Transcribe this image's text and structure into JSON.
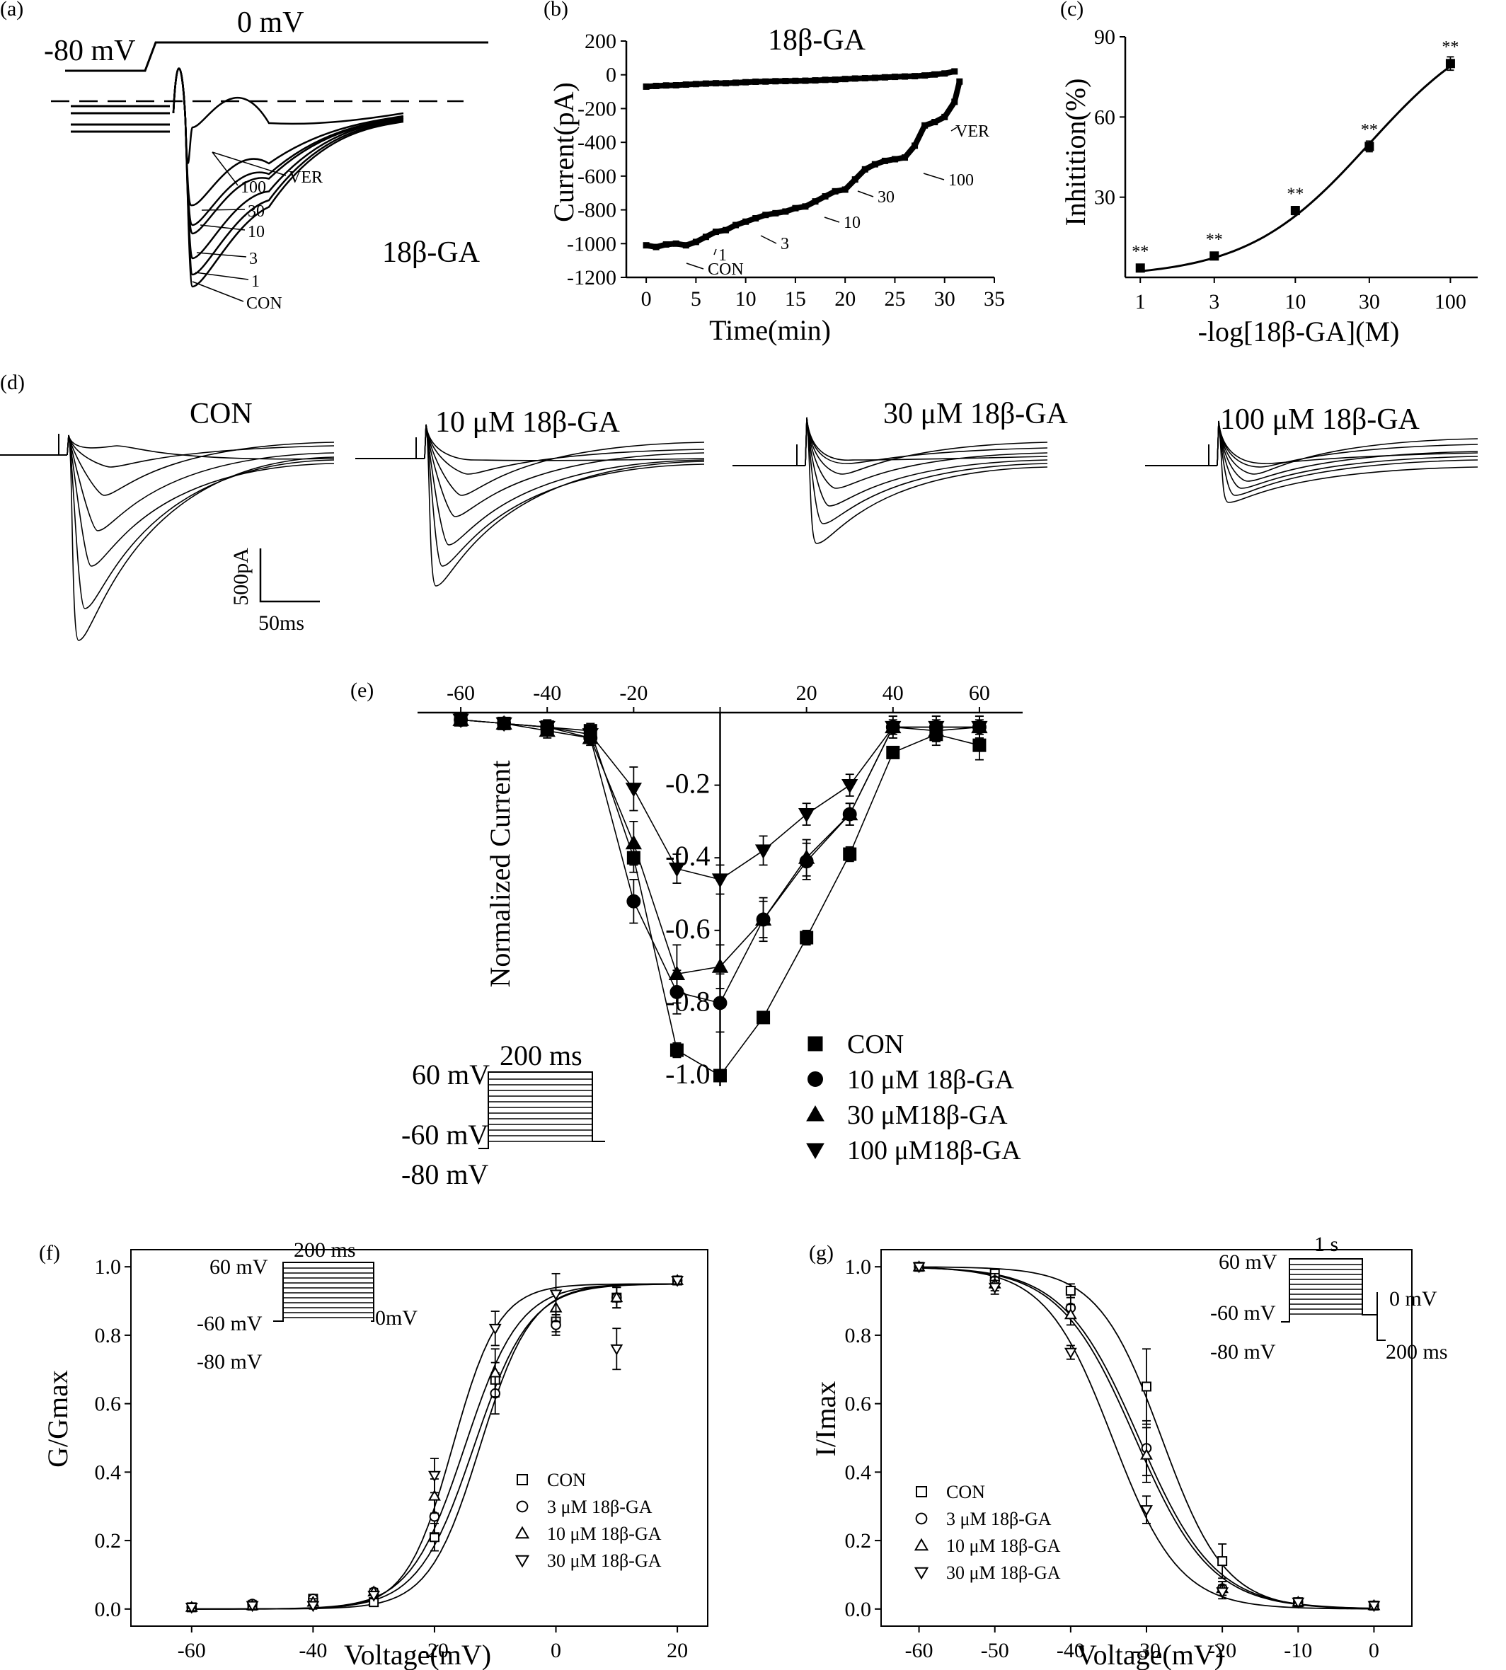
{
  "panel_labels": {
    "a": "(a)",
    "b": "(b)",
    "c": "(c)",
    "d": "(d)",
    "e": "(e)",
    "f": "(f)",
    "g": "(g)"
  },
  "panel_a": {
    "hold_label": "-80 mV",
    "step_label": "0 mV",
    "compound": "18β-GA",
    "trace_labels": [
      "VER",
      "100",
      "30",
      "10",
      "3",
      "1",
      "CON"
    ]
  },
  "panel_d": {
    "titles": [
      "CON",
      "10 μM 18β-GA",
      "30 μM 18β-GA",
      "100 μM 18β-GA"
    ],
    "scale_current": "500pA",
    "scale_time": "50ms"
  },
  "protocol_e": {
    "v_high": "60 mV",
    "v_mid": "-60 mV",
    "v_hold": "-80 mV",
    "duration": "200 ms"
  },
  "protocol_f": {
    "v_high": "60 mV",
    "v_mid": "-60 mV",
    "v_hold": "-80 mV",
    "duration": "200 ms",
    "v_post": "0mV"
  },
  "protocol_g": {
    "v_high": "60 mV",
    "v_mid": "-60 mV",
    "v_hold": "-80 mV",
    "duration": "1 s",
    "v_test": "0 mV",
    "test_duration": "200 ms"
  },
  "chart_data": [
    {
      "id": "b",
      "type": "line",
      "title": "18β-GA",
      "xlabel": "Time(min)",
      "ylabel": "Current(pA)",
      "xlim": [
        -2,
        35
      ],
      "ylim": [
        -1200,
        200
      ],
      "xticks": [
        0,
        5,
        10,
        15,
        20,
        25,
        30,
        35
      ],
      "xtick_labels": [
        "0",
        "5",
        "10",
        "15",
        "20",
        "25",
        "30",
        "35"
      ],
      "yticks": [
        200,
        0,
        -200,
        -400,
        -600,
        -800,
        -1000,
        -1200
      ],
      "ytick_labels": [
        "200",
        "0",
        "-200",
        "-400",
        "-600",
        "-800",
        "-1000",
        "-1200"
      ],
      "series": [
        {
          "values_x": [
            0,
            1,
            2,
            3,
            4,
            5,
            6,
            7,
            8,
            9,
            10,
            11,
            12,
            13,
            14,
            15,
            16,
            17,
            18,
            19,
            20,
            21,
            22,
            23,
            24,
            25,
            26,
            27,
            28,
            29,
            30,
            31
          ],
          "values_y": [
            -70,
            -66,
            -63,
            -62,
            -58,
            -55,
            -52,
            -50,
            -50,
            -47,
            -44,
            -41,
            -40,
            -38,
            -37,
            -36,
            -35,
            -33,
            -30,
            -29,
            -25,
            -22,
            -20,
            -18,
            -15,
            -12,
            -10,
            -8,
            -4,
            2,
            8,
            20
          ]
        },
        {
          "values_x": [
            0,
            1,
            2,
            3,
            4,
            5,
            6,
            7,
            8,
            9,
            10,
            11,
            12,
            13,
            14,
            15,
            16,
            17,
            18,
            19,
            20,
            21,
            22,
            23,
            24,
            25,
            26,
            27,
            28,
            29,
            30,
            31,
            31.5
          ],
          "values_y": [
            -1010,
            -1020,
            -1005,
            -1000,
            -1010,
            -990,
            -960,
            -930,
            -920,
            -890,
            -870,
            -850,
            -830,
            -820,
            -810,
            -790,
            -780,
            -750,
            -720,
            -690,
            -680,
            -620,
            -560,
            -530,
            -510,
            -500,
            -490,
            -420,
            -300,
            -280,
            -250,
            -160,
            -40
          ]
        }
      ],
      "annotations": [
        "CON",
        "1",
        "3",
        "10",
        "30",
        "100",
        "VER"
      ]
    },
    {
      "id": "c",
      "type": "line",
      "xlabel": "-log[18β-GA](M)",
      "ylabel": "Inhitition(%)",
      "xscale": "log",
      "xlim": [
        0.8,
        150
      ],
      "ylim": [
        0,
        90
      ],
      "xticks": [
        1,
        3,
        10,
        30,
        100
      ],
      "xtick_labels": [
        "1",
        "3",
        "10",
        "30",
        "100"
      ],
      "yticks": [
        30,
        60,
        90
      ],
      "ytick_labels": [
        "30",
        "60",
        "90"
      ],
      "categories": [
        1,
        3,
        10,
        30,
        100
      ],
      "values": [
        3.5,
        8.0,
        25.0,
        49.0,
        80.0
      ],
      "errors": [
        1.0,
        1.2,
        1.5,
        2.0,
        2.5
      ],
      "significance": [
        "**",
        "**",
        "**",
        "**",
        "**"
      ],
      "fit": "Hill curve"
    },
    {
      "id": "e",
      "type": "line",
      "ylabel": "Normalized Current",
      "xlim": [
        -70,
        70
      ],
      "ylim": [
        -1.05,
        0.05
      ],
      "xticks": [
        -60,
        -40,
        -20,
        0,
        20,
        40,
        60
      ],
      "xtick_labels": [
        "-60",
        "-40",
        "-20",
        "",
        "20",
        "40",
        "60"
      ],
      "yticks": [
        -0.2,
        -0.4,
        -0.6,
        -0.8,
        -1.0
      ],
      "ytick_labels": [
        "-0.2",
        "-0.4",
        "-0.6",
        "-0.8",
        "-1.0"
      ],
      "x": [
        -60,
        -50,
        -40,
        -30,
        -20,
        -10,
        0,
        10,
        20,
        30,
        40,
        50,
        60
      ],
      "series": [
        {
          "name": "CON",
          "marker": "square",
          "values": [
            -0.02,
            -0.03,
            -0.04,
            -0.05,
            -0.4,
            -0.93,
            -1.0,
            -0.84,
            -0.62,
            -0.39,
            -0.11,
            -0.06,
            -0.09
          ],
          "errors": [
            0.01,
            0.01,
            0.01,
            0.02,
            0.04,
            0.02,
            0.0,
            0.01,
            0.02,
            0.02,
            0.01,
            0.03,
            0.04
          ]
        },
        {
          "name": "10 μM 18β-GA",
          "marker": "circle",
          "values": [
            -0.02,
            -0.03,
            -0.04,
            -0.07,
            -0.52,
            -0.77,
            -0.8,
            -0.57,
            -0.41,
            -0.28,
            -0.04,
            -0.04,
            -0.04
          ],
          "errors": [
            0.01,
            0.01,
            0.02,
            0.02,
            0.06,
            0.06,
            0.08,
            0.06,
            0.05,
            0.03,
            0.03,
            0.03,
            0.03
          ]
        },
        {
          "name": "30 μM18β-GA",
          "marker": "triangle-up",
          "values": [
            -0.02,
            -0.03,
            -0.05,
            -0.07,
            -0.36,
            -0.72,
            -0.7,
            -0.57,
            -0.4,
            -0.28,
            -0.04,
            -0.05,
            -0.04
          ],
          "errors": [
            0.01,
            0.01,
            0.02,
            0.02,
            0.06,
            0.08,
            0.06,
            0.05,
            0.05,
            0.03,
            0.03,
            0.03,
            0.03
          ]
        },
        {
          "name": "100 μM18β-GA",
          "marker": "triangle-down",
          "values": [
            -0.02,
            -0.03,
            -0.04,
            -0.06,
            -0.21,
            -0.43,
            -0.46,
            -0.38,
            -0.28,
            -0.2,
            -0.04,
            -0.04,
            -0.04
          ],
          "errors": [
            0.01,
            0.01,
            0.01,
            0.02,
            0.06,
            0.04,
            0.04,
            0.04,
            0.03,
            0.03,
            0.02,
            0.03,
            0.02
          ]
        }
      ]
    },
    {
      "id": "f",
      "type": "scatter",
      "xlabel": "Voltage(mV)",
      "ylabel": "G/Gmax",
      "xlim": [
        -70,
        25
      ],
      "ylim": [
        -0.05,
        1.05
      ],
      "xticks": [
        -60,
        -40,
        -20,
        0,
        20
      ],
      "xtick_labels": [
        "-60",
        "-40",
        "-20",
        "0",
        "20"
      ],
      "yticks": [
        0.0,
        0.2,
        0.4,
        0.6,
        0.8,
        1.0
      ],
      "ytick_labels": [
        "0.0",
        "0.2",
        "0.4",
        "0.6",
        "0.8",
        "1.0"
      ],
      "x": [
        -60,
        -50,
        -40,
        -30,
        -20,
        -10,
        0,
        10,
        20
      ],
      "series": [
        {
          "name": "CON",
          "marker": "open-square",
          "values": [
            0.005,
            0.01,
            0.03,
            0.02,
            0.21,
            0.67,
            0.84,
            0.91,
            0.96
          ],
          "errors": [
            0.01,
            0.01,
            0.01,
            0.01,
            0.04,
            0.05,
            0.03,
            0.03,
            0.01
          ]
        },
        {
          "name": "3 μM 18β-GA",
          "marker": "open-circle",
          "values": [
            0.005,
            0.015,
            0.03,
            0.05,
            0.27,
            0.63,
            0.83,
            0.91,
            0.96
          ],
          "errors": [
            0.01,
            0.01,
            0.01,
            0.01,
            0.05,
            0.06,
            0.03,
            0.03,
            0.01
          ]
        },
        {
          "name": "10 μM 18β-GA",
          "marker": "open-triangle-up",
          "values": [
            0.005,
            0.01,
            0.02,
            0.05,
            0.33,
            0.69,
            0.88,
            0.91,
            0.96
          ],
          "errors": [
            0.01,
            0.01,
            0.01,
            0.01,
            0.05,
            0.07,
            0.04,
            0.03,
            0.01
          ]
        },
        {
          "name": "30 μM 18β-GA",
          "marker": "open-triangle-down",
          "values": [
            0.005,
            0.01,
            0.01,
            0.04,
            0.39,
            0.82,
            0.92,
            0.76,
            0.96
          ],
          "errors": [
            0.01,
            0.01,
            0.01,
            0.01,
            0.05,
            0.05,
            0.06,
            0.06,
            0.01
          ]
        }
      ]
    },
    {
      "id": "g",
      "type": "scatter",
      "xlabel": "Voltage(mV)",
      "ylabel": "I/Imax",
      "xlim": [
        -65,
        5
      ],
      "ylim": [
        -0.05,
        1.05
      ],
      "xticks": [
        -60,
        -50,
        -40,
        -30,
        -20,
        -10,
        0
      ],
      "xtick_labels": [
        "-60",
        "-50",
        "-40",
        "-30",
        "-20",
        "-10",
        "0"
      ],
      "yticks": [
        0.0,
        0.2,
        0.4,
        0.6,
        0.8,
        1.0
      ],
      "ytick_labels": [
        "0.0",
        "0.2",
        "0.4",
        "0.6",
        "0.8",
        "1.0"
      ],
      "x": [
        -60,
        -50,
        -40,
        -30,
        -20,
        -10,
        0
      ],
      "series": [
        {
          "name": "CON",
          "marker": "open-square",
          "values": [
            1.0,
            0.98,
            0.93,
            0.65,
            0.14,
            0.02,
            0.01
          ],
          "errors": [
            0.01,
            0.01,
            0.02,
            0.11,
            0.05,
            0.01,
            0.01
          ]
        },
        {
          "name": "3 μM 18β-GA",
          "marker": "open-circle",
          "values": [
            1.0,
            0.96,
            0.88,
            0.47,
            0.06,
            0.02,
            0.01
          ],
          "errors": [
            0.01,
            0.02,
            0.03,
            0.08,
            0.02,
            0.01,
            0.01
          ]
        },
        {
          "name": "10 μM 18β-GA",
          "marker": "open-triangle-up",
          "values": [
            1.0,
            0.95,
            0.86,
            0.45,
            0.06,
            0.02,
            0.01
          ],
          "errors": [
            0.01,
            0.02,
            0.03,
            0.08,
            0.02,
            0.01,
            0.01
          ]
        },
        {
          "name": "30 μM 18β-GA",
          "marker": "open-triangle-down",
          "values": [
            1.0,
            0.94,
            0.75,
            0.29,
            0.05,
            0.02,
            0.01
          ],
          "errors": [
            0.01,
            0.02,
            0.02,
            0.04,
            0.02,
            0.01,
            0.01
          ]
        }
      ]
    }
  ]
}
